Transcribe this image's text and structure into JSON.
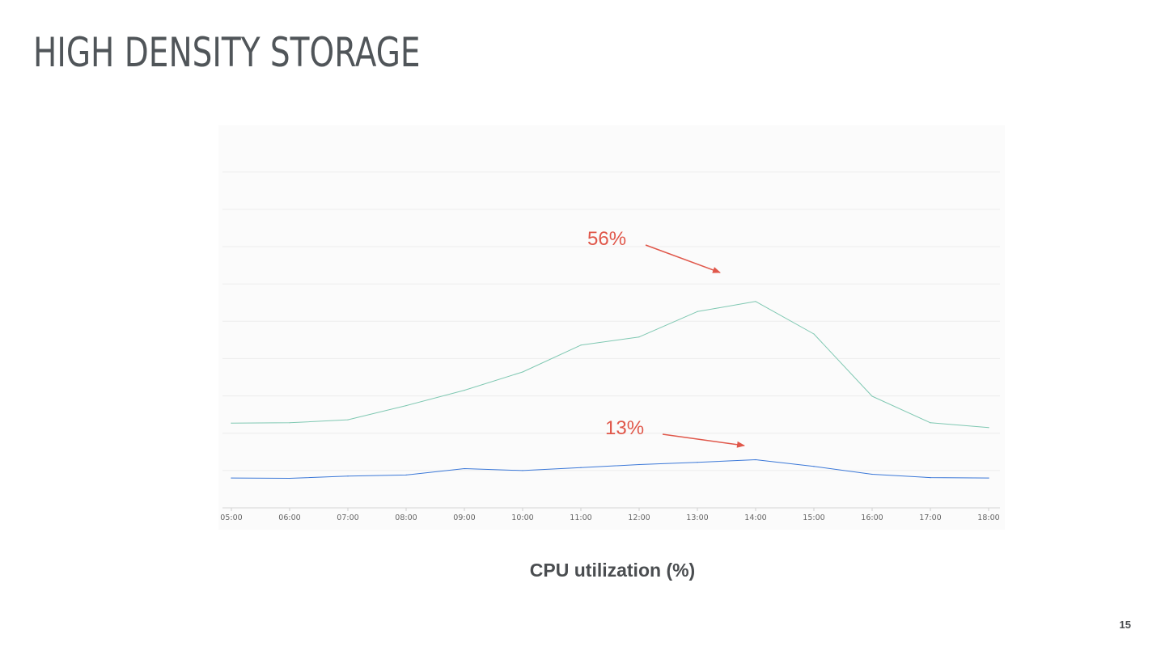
{
  "slide": {
    "title": "HIGH DENSITY STORAGE",
    "caption": "CPU utilization (%)",
    "page_number": "15"
  },
  "colors": {
    "background": "#ffffff",
    "plot_background": "#fbfbfb",
    "gridline": "#ececec",
    "title_text": "#505559",
    "tick_text": "#666666",
    "annotation": "#e0574a",
    "series_high": "#7fc8b2",
    "series_low": "#3b78d8"
  },
  "chart_data": {
    "type": "line",
    "title": "",
    "xlabel": "",
    "ylabel": "",
    "categories": [
      "05:00",
      "06:00",
      "07:00",
      "08:00",
      "09:00",
      "10:00",
      "11:00",
      "12:00",
      "13:00",
      "14:00",
      "15:00",
      "16:00",
      "17:00",
      "18:00"
    ],
    "ylim": [
      0,
      9.6
    ],
    "grid": true,
    "legend": "none",
    "series": [
      {
        "color": "#7fc8b2",
        "values": [
          2.27,
          2.28,
          2.36,
          2.74,
          3.15,
          3.64,
          4.36,
          4.58,
          5.26,
          5.53,
          4.66,
          2.99,
          2.28,
          2.15
        ]
      },
      {
        "color": "#3b78d8",
        "values": [
          0.8,
          0.79,
          0.85,
          0.88,
          1.05,
          1.0,
          1.08,
          1.16,
          1.22,
          1.29,
          1.11,
          0.9,
          0.81,
          0.8
        ]
      }
    ],
    "annotations": [
      {
        "text": "56%",
        "series": 0,
        "category": "13:00"
      },
      {
        "text": "13%",
        "series": 1,
        "category": "13:00"
      }
    ]
  }
}
